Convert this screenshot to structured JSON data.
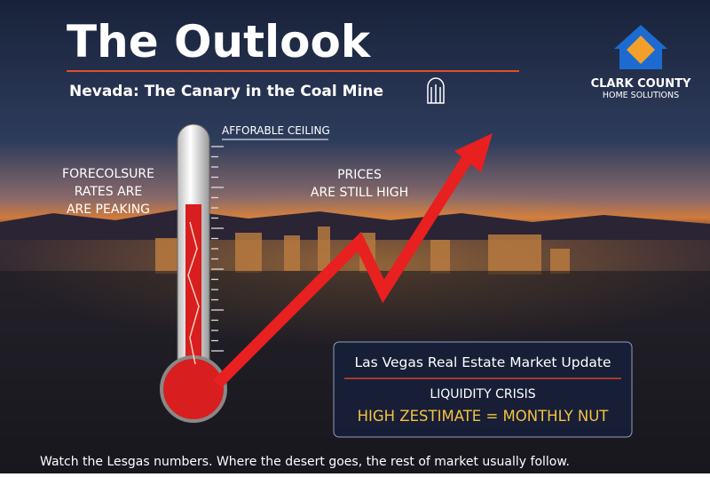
{
  "header": {
    "title": "The Outlook",
    "subtitle": "Nevada: The Canary in the Coal Mine"
  },
  "logo": {
    "name": "CLARK COUNTY",
    "tagline": "HOME SOLUTIONS"
  },
  "labels": {
    "ceiling": "AFFORABLE CEILING",
    "foreclosure": [
      "FORECOLSURE",
      "RATES ARE",
      "ARE  PEAKING"
    ],
    "prices": [
      "PRICES",
      "ARE STILL HIGH"
    ]
  },
  "info_box": {
    "title": "Las Vegas Real Estate Market Update",
    "line1": "LIQUIDITY CRISIS",
    "line2": "HIGH ZESTIMATE = MONTHLY NUT"
  },
  "footer": "Watch the Lesgas numbers. Where the desert goes, the rest of market usually follow."
}
